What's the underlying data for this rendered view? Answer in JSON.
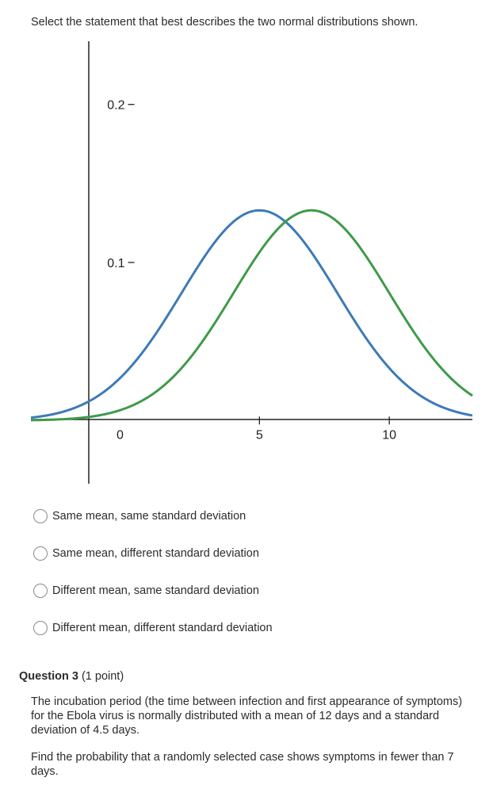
{
  "question2": {
    "prompt": "Select the statement that best describes the two normal distributions shown.",
    "options": [
      {
        "label": "Same mean, same standard deviation",
        "selected": false
      },
      {
        "label": "Same mean, different standard deviation",
        "selected": false
      },
      {
        "label": "Different mean, same standard deviation",
        "selected": false
      },
      {
        "label": "Different mean, different standard deviation",
        "selected": false
      }
    ]
  },
  "chart_data": {
    "type": "line",
    "title": "",
    "xlabel": "",
    "ylabel": "",
    "xlim": [
      -3.8,
      13.2
    ],
    "ylim": [
      -0.04,
      0.24
    ],
    "x_ticks": [
      0,
      5,
      10
    ],
    "x_tick_labels": [
      "0",
      "5",
      "10"
    ],
    "y_ticks": [
      0.1,
      0.2
    ],
    "y_tick_labels": [
      "0.1",
      "0.2"
    ],
    "grid": false,
    "legend": "none",
    "series": [
      {
        "distribution": "normal",
        "mean": 5,
        "sd": 3,
        "color": "#3d7ab8"
      },
      {
        "distribution": "normal",
        "mean": 7,
        "sd": 3,
        "color": "#3f9a4a"
      }
    ]
  },
  "question3": {
    "number": "Question 3",
    "points": "(1 point)",
    "paragraphs": [
      "The incubation period (the time between infection and first appearance of symptoms) for the Ebola virus is normally distributed with a mean of 12 days and a standard deviation of 4.5 days.",
      "Find the probability that a randomly selected case shows symptoms in fewer than 7 days."
    ]
  }
}
